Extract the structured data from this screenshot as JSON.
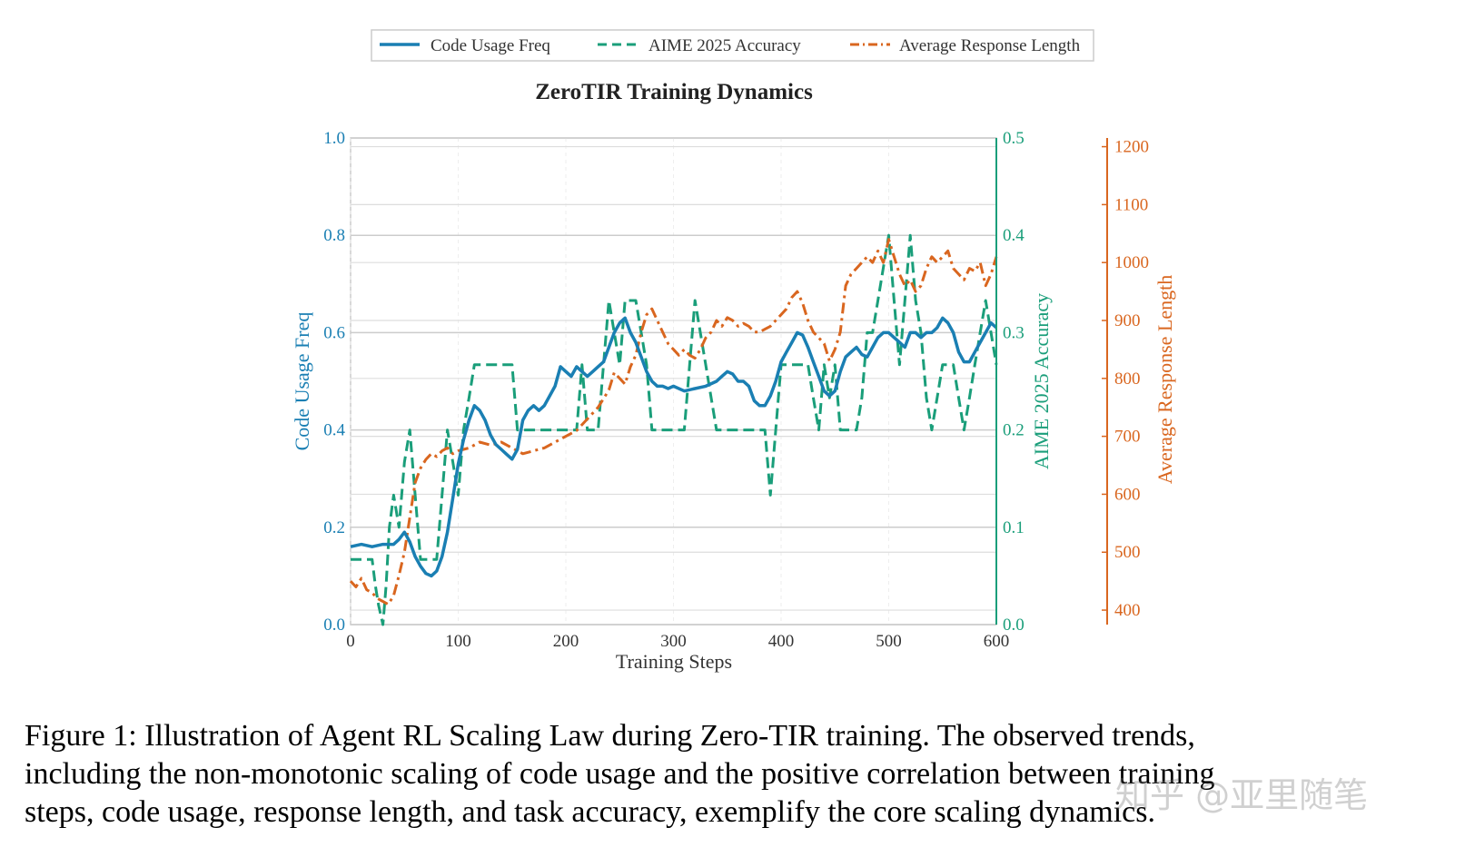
{
  "chart_data": {
    "type": "line",
    "title": "ZeroTIR Training Dynamics",
    "xlabel": "Training Steps",
    "xlim": [
      0,
      600
    ],
    "xticks": [
      "0",
      "100",
      "200",
      "300",
      "400",
      "500",
      "600"
    ],
    "legend_location": "top-center",
    "grid": true,
    "axes": {
      "left": {
        "label": "Code Usage Freq",
        "lim": [
          0,
          1.0
        ],
        "ticks": [
          "0.0",
          "0.2",
          "0.4",
          "0.6",
          "0.8",
          "1.0"
        ],
        "color": "#1a7fb3"
      },
      "right1": {
        "label": "AIME 2025 Accuracy",
        "lim": [
          0,
          0.5
        ],
        "ticks": [
          "0.0",
          "0.1",
          "0.2",
          "0.3",
          "0.4",
          "0.5"
        ],
        "color": "#1a9e7a"
      },
      "right2": {
        "label": "Average Response Length",
        "lim": [
          375,
          1215
        ],
        "ticks": [
          "400",
          "500",
          "600",
          "700",
          "800",
          "900",
          "1000",
          "1100",
          "1200"
        ],
        "color": "#d9661f"
      }
    },
    "series": [
      {
        "name": "Code Usage Freq",
        "axis": "left",
        "style": "solid",
        "color": "#1a7fb3",
        "x": [
          0,
          10,
          20,
          30,
          40,
          45,
          50,
          55,
          60,
          65,
          70,
          75,
          80,
          85,
          90,
          95,
          100,
          105,
          110,
          115,
          120,
          125,
          130,
          135,
          140,
          145,
          150,
          155,
          160,
          165,
          170,
          175,
          180,
          185,
          190,
          195,
          200,
          205,
          210,
          215,
          220,
          225,
          230,
          235,
          240,
          245,
          250,
          255,
          260,
          265,
          270,
          275,
          280,
          285,
          290,
          295,
          300,
          310,
          320,
          330,
          340,
          345,
          350,
          355,
          360,
          365,
          370,
          375,
          380,
          385,
          390,
          395,
          400,
          405,
          410,
          415,
          420,
          425,
          430,
          435,
          440,
          445,
          450,
          455,
          460,
          465,
          470,
          475,
          480,
          485,
          490,
          495,
          500,
          505,
          510,
          515,
          520,
          525,
          530,
          535,
          540,
          545,
          550,
          555,
          560,
          565,
          570,
          575,
          580,
          585,
          590,
          595,
          600
        ],
        "values": [
          0.16,
          0.165,
          0.16,
          0.165,
          0.165,
          0.175,
          0.19,
          0.17,
          0.14,
          0.12,
          0.105,
          0.1,
          0.11,
          0.14,
          0.19,
          0.26,
          0.33,
          0.38,
          0.42,
          0.45,
          0.44,
          0.42,
          0.39,
          0.37,
          0.36,
          0.35,
          0.34,
          0.36,
          0.42,
          0.44,
          0.45,
          0.44,
          0.45,
          0.47,
          0.49,
          0.53,
          0.52,
          0.51,
          0.53,
          0.52,
          0.51,
          0.52,
          0.53,
          0.54,
          0.57,
          0.6,
          0.62,
          0.63,
          0.6,
          0.58,
          0.55,
          0.52,
          0.5,
          0.49,
          0.49,
          0.485,
          0.49,
          0.48,
          0.485,
          0.49,
          0.5,
          0.51,
          0.52,
          0.515,
          0.5,
          0.5,
          0.49,
          0.46,
          0.45,
          0.45,
          0.47,
          0.5,
          0.54,
          0.56,
          0.58,
          0.6,
          0.595,
          0.57,
          0.54,
          0.51,
          0.48,
          0.47,
          0.48,
          0.52,
          0.55,
          0.56,
          0.57,
          0.555,
          0.55,
          0.57,
          0.59,
          0.6,
          0.6,
          0.59,
          0.58,
          0.57,
          0.6,
          0.6,
          0.59,
          0.6,
          0.6,
          0.61,
          0.63,
          0.62,
          0.6,
          0.56,
          0.54,
          0.54,
          0.56,
          0.58,
          0.6,
          0.62,
          0.61
        ]
      },
      {
        "name": "AIME 2025 Accuracy",
        "axis": "right1",
        "style": "dashed",
        "color": "#1a9e7a",
        "x": [
          0,
          10,
          20,
          23,
          26,
          30,
          33,
          36,
          40,
          45,
          50,
          55,
          60,
          65,
          70,
          75,
          80,
          85,
          90,
          95,
          100,
          105,
          110,
          115,
          120,
          125,
          130,
          135,
          140,
          145,
          150,
          155,
          160,
          165,
          170,
          175,
          180,
          185,
          190,
          195,
          200,
          205,
          210,
          215,
          220,
          225,
          230,
          235,
          240,
          245,
          250,
          255,
          260,
          265,
          270,
          275,
          280,
          285,
          290,
          295,
          300,
          305,
          310,
          315,
          320,
          325,
          330,
          335,
          340,
          345,
          350,
          355,
          360,
          365,
          370,
          375,
          380,
          385,
          390,
          395,
          400,
          405,
          410,
          415,
          420,
          425,
          430,
          435,
          440,
          445,
          450,
          455,
          460,
          465,
          470,
          475,
          480,
          485,
          490,
          495,
          500,
          505,
          510,
          515,
          520,
          525,
          530,
          535,
          540,
          545,
          550,
          555,
          560,
          565,
          570,
          575,
          580,
          585,
          590,
          595,
          600
        ],
        "values": [
          0.067,
          0.067,
          0.067,
          0.04,
          0.02,
          0.0,
          0.04,
          0.1,
          0.133,
          0.1,
          0.167,
          0.2,
          0.133,
          0.067,
          0.067,
          0.067,
          0.067,
          0.133,
          0.2,
          0.167,
          0.133,
          0.2,
          0.233,
          0.267,
          0.267,
          0.267,
          0.267,
          0.267,
          0.267,
          0.267,
          0.267,
          0.2,
          0.2,
          0.2,
          0.2,
          0.2,
          0.2,
          0.2,
          0.2,
          0.2,
          0.2,
          0.2,
          0.2,
          0.267,
          0.2,
          0.2,
          0.2,
          0.267,
          0.333,
          0.3,
          0.267,
          0.333,
          0.333,
          0.333,
          0.3,
          0.267,
          0.2,
          0.2,
          0.2,
          0.2,
          0.2,
          0.2,
          0.2,
          0.267,
          0.333,
          0.3,
          0.267,
          0.233,
          0.2,
          0.2,
          0.2,
          0.2,
          0.2,
          0.2,
          0.2,
          0.2,
          0.2,
          0.2,
          0.133,
          0.2,
          0.267,
          0.267,
          0.267,
          0.267,
          0.267,
          0.267,
          0.233,
          0.2,
          0.267,
          0.233,
          0.267,
          0.2,
          0.2,
          0.2,
          0.2,
          0.233,
          0.3,
          0.3,
          0.333,
          0.367,
          0.4,
          0.333,
          0.267,
          0.333,
          0.4,
          0.333,
          0.3,
          0.233,
          0.2,
          0.233,
          0.267,
          0.267,
          0.267,
          0.233,
          0.2,
          0.233,
          0.267,
          0.3,
          0.333,
          0.3,
          0.267
        ]
      },
      {
        "name": "Average Response Length",
        "axis": "right2",
        "style": "dashdot",
        "color": "#d9661f",
        "x": [
          0,
          5,
          10,
          15,
          20,
          25,
          30,
          35,
          40,
          45,
          50,
          55,
          60,
          65,
          70,
          75,
          80,
          85,
          90,
          95,
          100,
          110,
          120,
          130,
          140,
          150,
          160,
          170,
          180,
          190,
          200,
          210,
          220,
          230,
          240,
          245,
          250,
          255,
          260,
          265,
          270,
          275,
          280,
          285,
          290,
          295,
          300,
          305,
          310,
          315,
          320,
          325,
          330,
          335,
          340,
          345,
          350,
          355,
          360,
          365,
          370,
          375,
          380,
          385,
          390,
          395,
          400,
          405,
          410,
          415,
          420,
          425,
          430,
          435,
          440,
          445,
          450,
          455,
          460,
          465,
          470,
          475,
          480,
          485,
          490,
          495,
          500,
          505,
          510,
          515,
          520,
          525,
          530,
          535,
          540,
          545,
          550,
          555,
          560,
          565,
          570,
          575,
          580,
          585,
          590,
          595,
          600
        ],
        "values": [
          450,
          440,
          455,
          435,
          430,
          420,
          415,
          410,
          425,
          460,
          500,
          560,
          620,
          645,
          660,
          670,
          665,
          675,
          680,
          670,
          675,
          680,
          690,
          685,
          690,
          680,
          670,
          675,
          680,
          690,
          700,
          710,
          730,
          750,
          780,
          810,
          800,
          790,
          820,
          840,
          880,
          910,
          920,
          900,
          880,
          860,
          850,
          840,
          850,
          840,
          835,
          850,
          870,
          880,
          900,
          890,
          905,
          900,
          890,
          895,
          890,
          880,
          880,
          885,
          890,
          900,
          910,
          920,
          940,
          950,
          930,
          900,
          880,
          870,
          860,
          830,
          850,
          880,
          960,
          980,
          990,
          1000,
          1010,
          1000,
          1020,
          1000,
          1040,
          1010,
          980,
          960,
          970,
          950,
          960,
          990,
          1010,
          1000,
          1010,
          1020,
          990,
          980,
          970,
          990,
          985,
          1000,
          960,
          980,
          1010
        ]
      }
    ]
  },
  "caption": {
    "line1": "Figure 1: Illustration of Agent RL Scaling Law during Zero-TIR training. The observed trends,",
    "line2": "including the non-monotonic scaling of code usage and the positive correlation between training",
    "line3": "steps, code usage, response length, and task accuracy, exemplify the core scaling dynamics."
  },
  "watermark": "知乎 @亚里随笔"
}
